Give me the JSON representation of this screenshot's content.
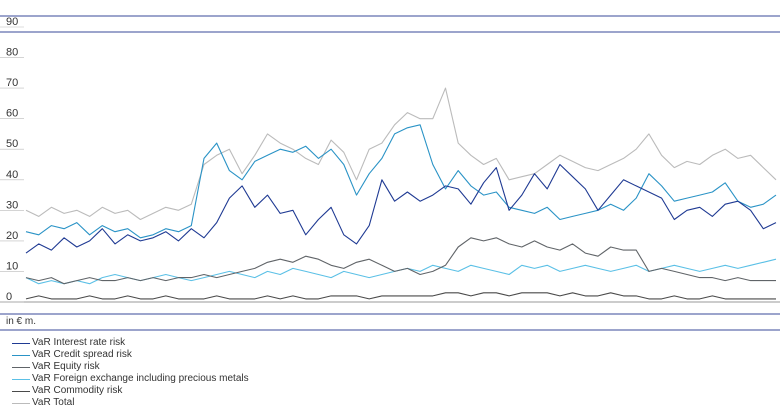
{
  "chart_data": {
    "type": "line",
    "ylim": [
      0,
      90
    ],
    "yticks": [
      0,
      10,
      20,
      30,
      40,
      50,
      60,
      70,
      80,
      90
    ],
    "x": [
      1,
      2,
      3,
      4,
      5,
      6,
      7,
      8,
      9,
      10,
      11,
      12,
      13,
      14,
      15,
      16,
      17,
      18,
      19,
      20,
      21,
      22,
      23,
      24,
      25,
      26,
      27,
      28,
      29,
      30,
      31,
      32,
      33,
      34,
      35,
      36,
      37,
      38,
      39,
      40,
      41,
      42,
      43,
      44,
      45,
      46,
      47,
      48,
      49,
      50,
      51,
      52,
      53,
      54,
      55,
      56,
      57,
      58,
      59,
      60
    ],
    "ylabel": "in € m.",
    "grid": false,
    "legend_position": "bottom",
    "series": [
      {
        "name": "VaR Interest rate risk",
        "color": "#1f3a93",
        "values": [
          16,
          19,
          17,
          21,
          18,
          20,
          24,
          19,
          22,
          20,
          21,
          23,
          20,
          24,
          21,
          26,
          34,
          38,
          31,
          35,
          29,
          30,
          22,
          27,
          31,
          22,
          19,
          25,
          40,
          33,
          36,
          33,
          35,
          38,
          37,
          32,
          39,
          44,
          30,
          35,
          42,
          37,
          45,
          41,
          37,
          30,
          35,
          40,
          38,
          36,
          34,
          27,
          30,
          31,
          28,
          32,
          33,
          30,
          24,
          26
        ]
      },
      {
        "name": "VaR Credit spread risk",
        "color": "#2a93c6",
        "values": [
          23,
          22,
          25,
          24,
          26,
          22,
          25,
          23,
          24,
          21,
          22,
          24,
          23,
          25,
          47,
          52,
          43,
          40,
          46,
          48,
          50,
          49,
          51,
          47,
          50,
          45,
          35,
          42,
          47,
          55,
          57,
          58,
          45,
          37,
          43,
          38,
          35,
          36,
          31,
          30,
          29,
          31,
          27,
          28,
          29,
          30,
          32,
          30,
          34,
          42,
          38,
          33,
          34,
          35,
          36,
          39,
          33,
          31,
          32,
          35
        ]
      },
      {
        "name": "VaR Equity risk",
        "color": "#606468",
        "values": [
          8,
          7,
          8,
          6,
          7,
          8,
          7,
          7,
          8,
          7,
          8,
          7,
          8,
          8,
          9,
          8,
          9,
          10,
          11,
          13,
          14,
          13,
          15,
          14,
          12,
          11,
          13,
          14,
          12,
          10,
          11,
          9,
          10,
          12,
          18,
          21,
          20,
          21,
          19,
          18,
          20,
          18,
          17,
          19,
          16,
          15,
          18,
          17,
          17,
          10,
          11,
          10,
          9,
          8,
          8,
          7,
          8,
          7,
          7,
          7
        ]
      },
      {
        "name": "VaR Foreign exchange including precious metals",
        "color": "#5bc0e6",
        "values": [
          8,
          6,
          7,
          6,
          7,
          6,
          8,
          9,
          8,
          7,
          8,
          9,
          8,
          7,
          8,
          9,
          10,
          9,
          8,
          10,
          9,
          11,
          10,
          9,
          8,
          10,
          9,
          8,
          9,
          10,
          11,
          10,
          12,
          11,
          10,
          12,
          11,
          10,
          9,
          12,
          11,
          12,
          10,
          11,
          12,
          11,
          10,
          11,
          12,
          10,
          11,
          12,
          11,
          10,
          11,
          12,
          11,
          12,
          13,
          14
        ]
      },
      {
        "name": "VaR Commodity risk",
        "color": "#4a4a4a",
        "values": [
          1,
          2,
          1,
          1,
          1,
          2,
          1,
          1,
          2,
          1,
          1,
          2,
          1,
          1,
          1,
          2,
          1,
          1,
          1,
          2,
          1,
          2,
          1,
          1,
          2,
          2,
          2,
          1,
          2,
          2,
          2,
          2,
          2,
          3,
          3,
          2,
          3,
          3,
          2,
          3,
          3,
          3,
          2,
          3,
          2,
          2,
          3,
          2,
          2,
          1,
          1,
          2,
          1,
          1,
          2,
          1,
          1,
          1,
          1,
          1
        ]
      },
      {
        "name": "VaR Total",
        "color": "#bbbbbb",
        "values": [
          30,
          28,
          31,
          29,
          30,
          28,
          31,
          29,
          30,
          27,
          29,
          31,
          30,
          32,
          45,
          48,
          50,
          42,
          48,
          55,
          52,
          50,
          47,
          45,
          53,
          49,
          40,
          50,
          52,
          58,
          62,
          60,
          60,
          70,
          52,
          48,
          45,
          47,
          40,
          41,
          42,
          45,
          48,
          46,
          44,
          43,
          45,
          47,
          50,
          55,
          48,
          44,
          46,
          45,
          48,
          50,
          47,
          48,
          44,
          40
        ]
      }
    ]
  }
}
